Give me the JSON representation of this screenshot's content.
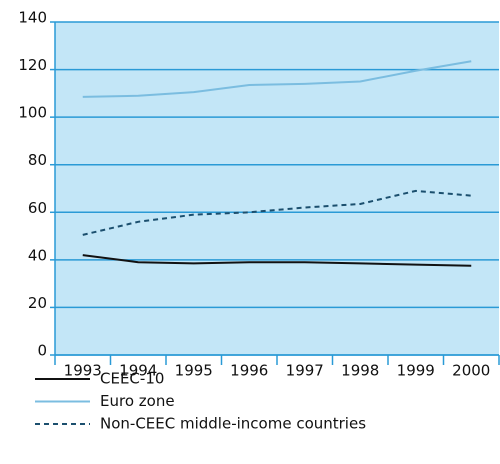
{
  "chart_data": {
    "type": "line",
    "categories": [
      "1993",
      "1994",
      "1995",
      "1996",
      "1997",
      "1998",
      "1999",
      "2000"
    ],
    "series": [
      {
        "name": "CEEC-10",
        "color": "#111111",
        "dash": "solid",
        "values": [
          42,
          39,
          38.5,
          39,
          39,
          38.5,
          38,
          37.5
        ]
      },
      {
        "name": "Euro zone",
        "color": "#7bbde0",
        "dash": "solid",
        "values": [
          108.5,
          109,
          110.5,
          113.5,
          114,
          115,
          119.5,
          123.5
        ]
      },
      {
        "name": "Non-CEEC middle-income countries",
        "color": "#1b4f6e",
        "dash": "dashed",
        "values": [
          50.5,
          56,
          59,
          60,
          62,
          63.5,
          69,
          67
        ]
      }
    ],
    "ylim": [
      0,
      140
    ],
    "yticks": [
      0,
      20,
      40,
      60,
      80,
      100,
      120,
      140
    ],
    "grid": true,
    "background": "#c3e6f7",
    "grid_color": "#2a9ad6"
  }
}
